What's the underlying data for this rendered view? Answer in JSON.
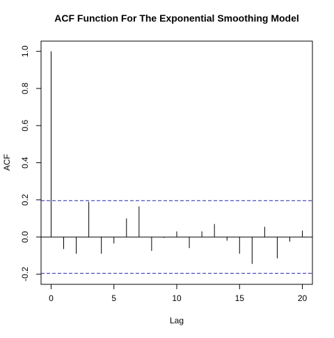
{
  "chart_data": {
    "type": "bar",
    "title": "ACF Function For The Exponential Smoothing Model",
    "xlabel": "Lag",
    "ylabel": "ACF",
    "xlim": [
      -0.8,
      20.8
    ],
    "ylim": [
      -0.255,
      1.055
    ],
    "x_ticks": [
      0,
      5,
      10,
      15,
      20
    ],
    "x_tick_labels": [
      "0",
      "5",
      "10",
      "15",
      "20"
    ],
    "y_ticks": [
      -0.2,
      0.0,
      0.2,
      0.4,
      0.6,
      0.8,
      1.0
    ],
    "y_tick_labels": [
      "-0.2",
      "0.0",
      "0.2",
      "0.4",
      "0.6",
      "0.8",
      "1.0"
    ],
    "confidence_bounds": [
      0.196,
      -0.196
    ],
    "zero_line": true,
    "lags": [
      0,
      1,
      2,
      3,
      4,
      5,
      6,
      7,
      8,
      9,
      10,
      11,
      12,
      13,
      14,
      15,
      16,
      17,
      18,
      19,
      20
    ],
    "values": [
      1.0,
      -0.065,
      -0.09,
      0.19,
      -0.09,
      -0.035,
      0.1,
      0.165,
      -0.075,
      -0.005,
      0.03,
      -0.06,
      0.03,
      0.07,
      -0.02,
      -0.09,
      -0.145,
      0.055,
      -0.115,
      -0.025,
      0.035
    ]
  }
}
